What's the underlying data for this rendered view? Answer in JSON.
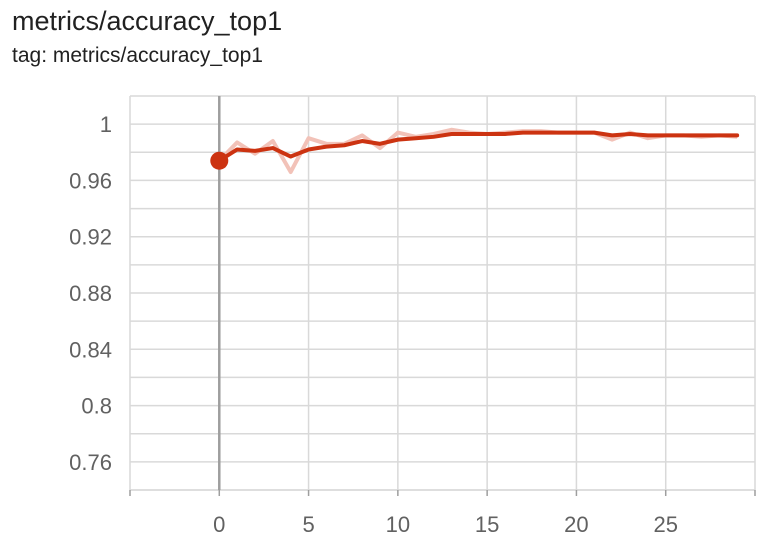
{
  "card": {
    "title": "metrics/accuracy_top1",
    "tag": "tag: metrics/accuracy_top1"
  },
  "colors": {
    "smoothed": "#cc3311",
    "raw": "#f2c2b8",
    "grid": "#d9d9d9",
    "zero_line": "#9e9e9e",
    "tick_text": "#616161"
  },
  "chart_data": {
    "type": "line",
    "title": "metrics/accuracy_top1",
    "xlabel": "",
    "ylabel": "",
    "xlim": [
      -5,
      30
    ],
    "ylim": [
      0.74,
      1.02
    ],
    "x_ticks": [
      0,
      5,
      10,
      15,
      20,
      25
    ],
    "x_tick_labels": [
      "0",
      "5",
      "10",
      "15",
      "20",
      "25"
    ],
    "y_ticks": [
      0.76,
      0.8,
      0.84,
      0.88,
      0.92,
      0.96,
      1.0
    ],
    "y_tick_labels": [
      "0.76",
      "0.8",
      "0.84",
      "0.88",
      "0.92",
      "0.96",
      "1"
    ],
    "grid": true,
    "legend": "none",
    "highlight_point": {
      "x": 0,
      "y": 0.974
    },
    "series": [
      {
        "role": "smoothed",
        "x": [
          0,
          1,
          2,
          3,
          4,
          5,
          6,
          7,
          8,
          9,
          10,
          11,
          12,
          13,
          14,
          15,
          16,
          17,
          18,
          19,
          20,
          21,
          22,
          23,
          24,
          25,
          26,
          27,
          28,
          29
        ],
        "y": [
          0.974,
          0.982,
          0.981,
          0.983,
          0.977,
          0.982,
          0.984,
          0.985,
          0.988,
          0.986,
          0.989,
          0.99,
          0.991,
          0.993,
          0.993,
          0.993,
          0.993,
          0.994,
          0.994,
          0.994,
          0.994,
          0.994,
          0.992,
          0.993,
          0.992,
          0.992,
          0.992,
          0.992,
          0.992,
          0.992
        ]
      },
      {
        "role": "raw",
        "x": [
          0,
          1,
          2,
          3,
          4,
          5,
          6,
          7,
          8,
          9,
          10,
          11,
          12,
          13,
          14,
          15,
          16,
          17,
          18,
          19,
          20,
          21,
          22,
          23,
          24,
          25,
          26,
          27,
          28,
          29
        ],
        "y": [
          0.974,
          0.987,
          0.979,
          0.988,
          0.966,
          0.99,
          0.986,
          0.986,
          0.992,
          0.983,
          0.994,
          0.991,
          0.993,
          0.996,
          0.994,
          0.993,
          0.994,
          0.995,
          0.995,
          0.994,
          0.994,
          0.994,
          0.989,
          0.994,
          0.99,
          0.992,
          0.992,
          0.991,
          0.992,
          0.991
        ]
      }
    ]
  }
}
